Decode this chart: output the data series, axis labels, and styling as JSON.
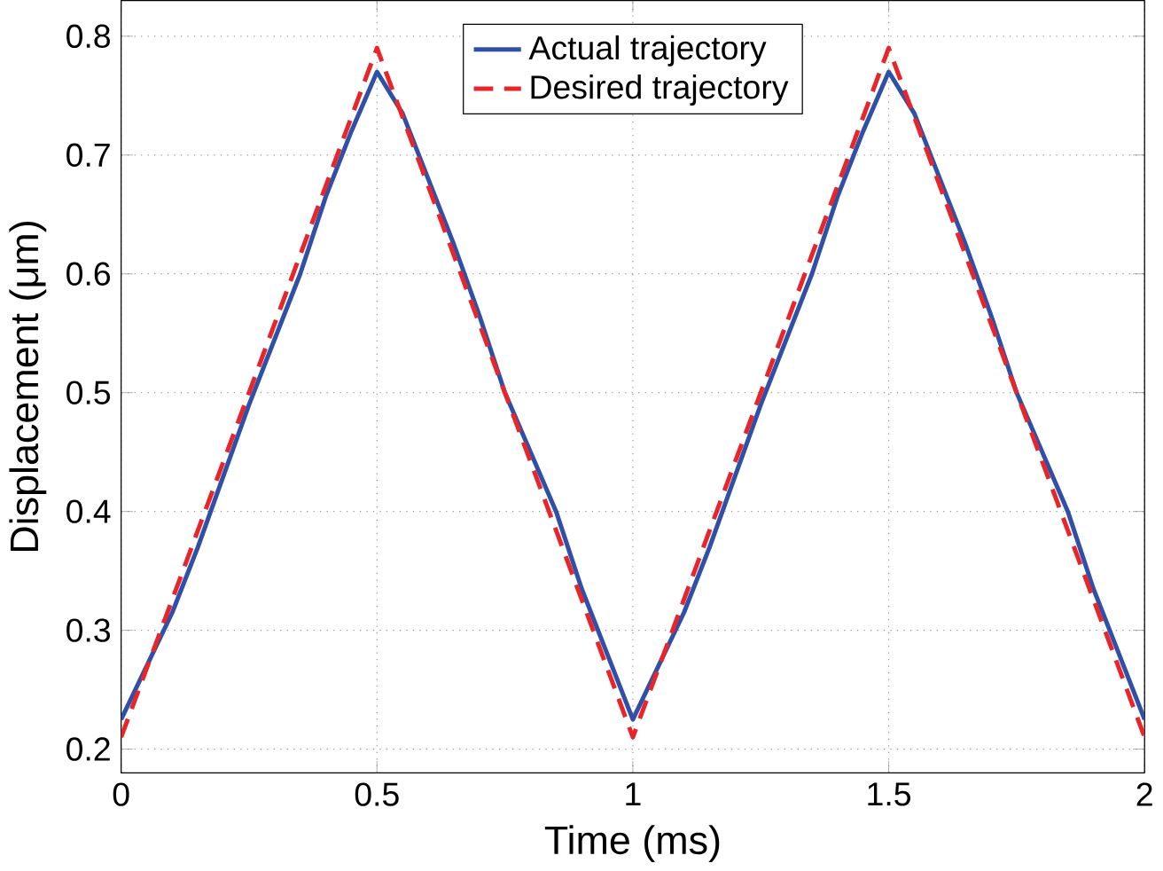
{
  "chart_data": {
    "type": "line",
    "xlabel": "Time (ms)",
    "ylabel": "Displacement (μm)",
    "xlim": [
      0,
      2
    ],
    "ylim": [
      0.18,
      0.83
    ],
    "xticks": [
      0,
      0.5,
      1,
      1.5,
      2
    ],
    "yticks": [
      0.2,
      0.3,
      0.4,
      0.5,
      0.6,
      0.7,
      0.8
    ],
    "grid": true,
    "legend": "top",
    "marker": "none",
    "series": [
      {
        "name": "Actual trajectory",
        "color": "#3050a8",
        "line_style": "solid",
        "x": [
          0,
          0.05,
          0.1,
          0.15,
          0.2,
          0.25,
          0.3,
          0.35,
          0.4,
          0.45,
          0.5,
          0.55,
          0.6,
          0.65,
          0.7,
          0.75,
          0.8,
          0.85,
          0.9,
          0.95,
          1.0,
          1.05,
          1.1,
          1.15,
          1.2,
          1.25,
          1.3,
          1.35,
          1.4,
          1.45,
          1.5,
          1.55,
          1.6,
          1.65,
          1.7,
          1.75,
          1.8,
          1.85,
          1.9,
          1.95,
          2.0
        ],
        "values": [
          0.225,
          0.27,
          0.315,
          0.37,
          0.43,
          0.49,
          0.545,
          0.6,
          0.665,
          0.72,
          0.77,
          0.735,
          0.68,
          0.625,
          0.565,
          0.5,
          0.45,
          0.4,
          0.335,
          0.28,
          0.225,
          0.27,
          0.315,
          0.37,
          0.43,
          0.49,
          0.545,
          0.6,
          0.665,
          0.72,
          0.77,
          0.735,
          0.68,
          0.625,
          0.565,
          0.5,
          0.45,
          0.4,
          0.335,
          0.28,
          0.225
        ]
      },
      {
        "name": "Desired trajectory",
        "color": "#e8262a",
        "line_style": "dashed",
        "x": [
          0,
          0.5,
          1,
          1.5,
          2
        ],
        "values": [
          0.21,
          0.79,
          0.21,
          0.79,
          0.21
        ]
      }
    ]
  }
}
